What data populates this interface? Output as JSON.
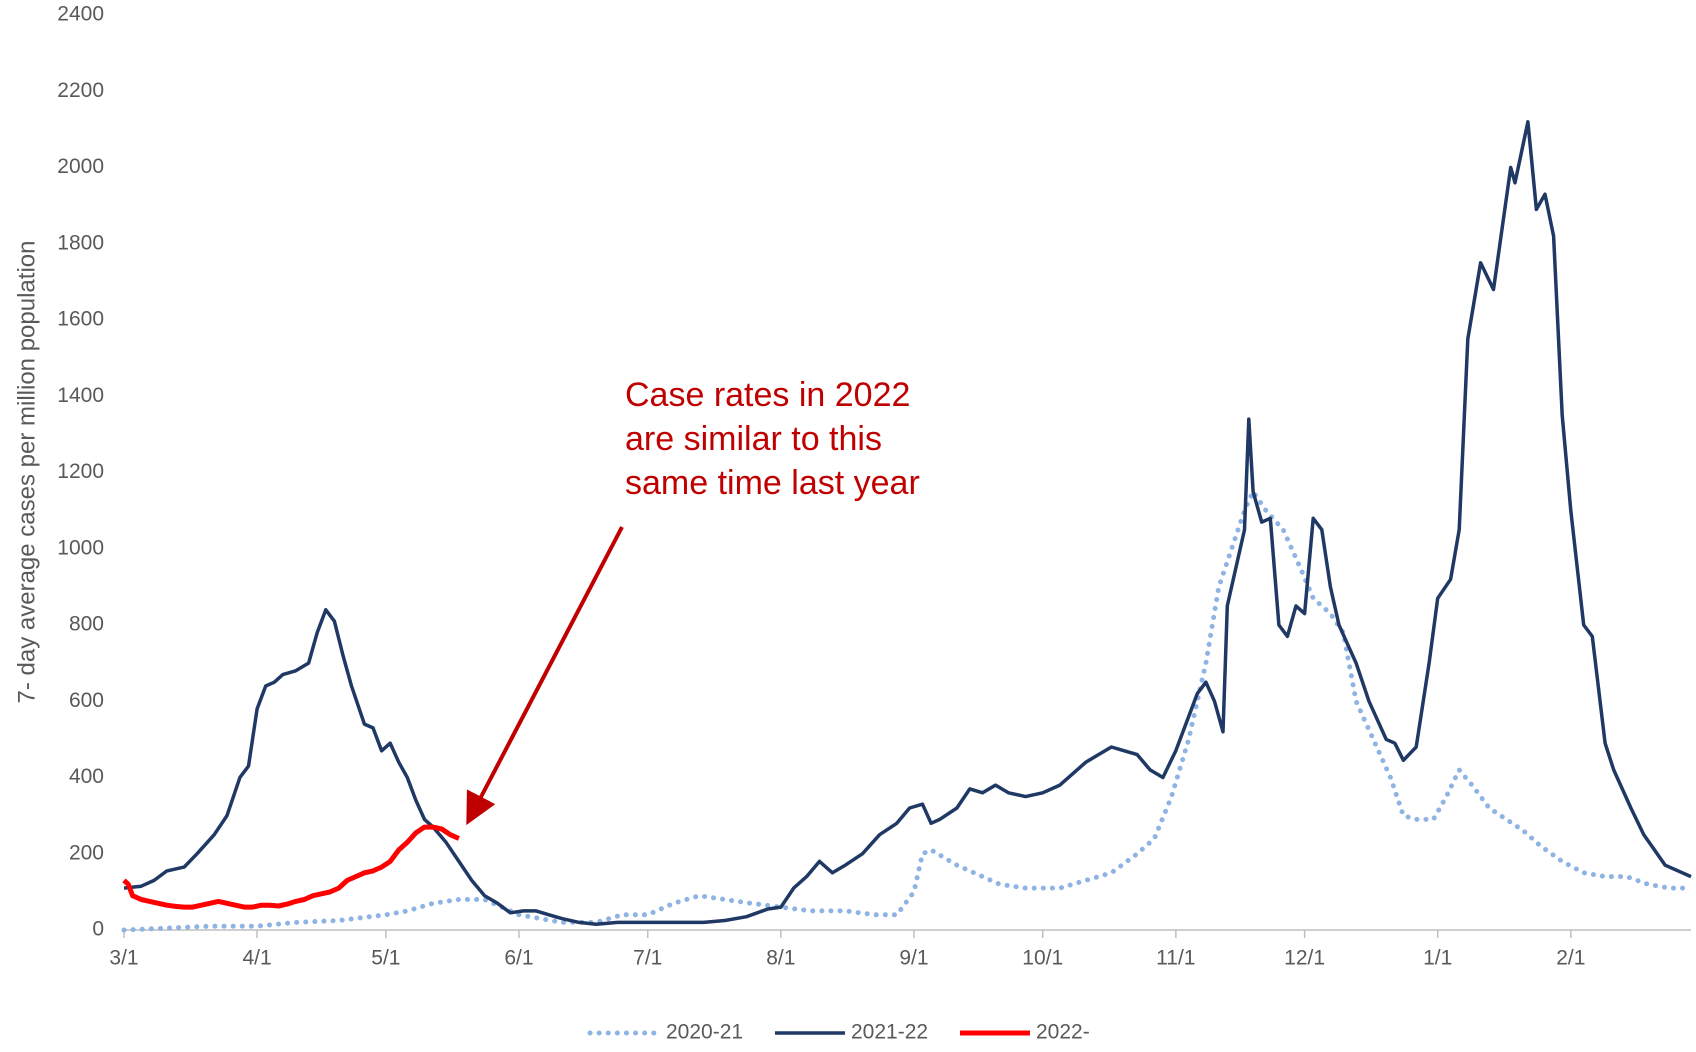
{
  "chart_data": {
    "type": "line",
    "y_label": "7- day average  cases per million population",
    "annotation": [
      "Case rates in 2022",
      "are similar to this",
      "same time last year"
    ],
    "xlim": [
      0,
      365
    ],
    "xticks": [
      {
        "value": 0,
        "label": "3/1"
      },
      {
        "value": 31,
        "label": "4/1"
      },
      {
        "value": 61,
        "label": "5/1"
      },
      {
        "value": 92,
        "label": "6/1"
      },
      {
        "value": 122,
        "label": "7/1"
      },
      {
        "value": 153,
        "label": "8/1"
      },
      {
        "value": 184,
        "label": "9/1"
      },
      {
        "value": 214,
        "label": "10/1"
      },
      {
        "value": 245,
        "label": "11/1"
      },
      {
        "value": 275,
        "label": "12/1"
      },
      {
        "value": 306,
        "label": "1/1"
      },
      {
        "value": 337,
        "label": "2/1"
      }
    ],
    "ylim": [
      0,
      2400
    ],
    "yticks": [
      0,
      200,
      400,
      600,
      800,
      1000,
      1200,
      1400,
      1600,
      1800,
      2000,
      2200,
      2400
    ],
    "grid": false,
    "legend": "bottom",
    "series": [
      {
        "name": "2020-21",
        "color": "#8fb4e3",
        "style": "dotted",
        "x": [
          0,
          10,
          20,
          31,
          40,
          50,
          61,
          66,
          72,
          78,
          84,
          88,
          92,
          97,
          102,
          110,
          116,
          122,
          128,
          134,
          140,
          146,
          153,
          160,
          168,
          175,
          180,
          184,
          186,
          188,
          191,
          194,
          198,
          204,
          210,
          218,
          224,
          230,
          236,
          240,
          244,
          248,
          252,
          255,
          258,
          261,
          263,
          266,
          270,
          274,
          277,
          281,
          284,
          287,
          291,
          295,
          298,
          301,
          305,
          308,
          311,
          314,
          318,
          322,
          326,
          330,
          335,
          340,
          345,
          350,
          355,
          360,
          365
        ],
        "values": [
          0,
          5,
          10,
          10,
          20,
          25,
          40,
          50,
          70,
          80,
          80,
          60,
          40,
          30,
          20,
          20,
          40,
          40,
          70,
          90,
          80,
          70,
          60,
          50,
          50,
          40,
          40,
          100,
          200,
          210,
          190,
          170,
          150,
          120,
          110,
          110,
          130,
          150,
          200,
          240,
          350,
          500,
          700,
          900,
          1000,
          1100,
          1150,
          1100,
          1050,
          950,
          870,
          830,
          780,
          600,
          500,
          400,
          300,
          290,
          290,
          350,
          420,
          380,
          320,
          290,
          260,
          220,
          180,
          150,
          140,
          140,
          120,
          110,
          110
        ]
      },
      {
        "name": "2021-22",
        "color": "#1f3864",
        "style": "solid",
        "x": [
          0,
          4,
          7,
          10,
          14,
          17,
          21,
          24,
          27,
          29,
          31,
          33,
          35,
          37,
          40,
          43,
          45,
          47,
          49,
          51,
          53,
          56,
          58,
          60,
          62,
          64,
          66,
          68,
          70,
          72,
          75,
          78,
          81,
          84,
          87,
          90,
          93,
          96,
          99,
          102,
          106,
          110,
          115,
          120,
          125,
          130,
          135,
          140,
          145,
          150,
          153,
          156,
          159,
          162,
          165,
          168,
          172,
          176,
          180,
          183,
          186,
          188,
          190,
          194,
          197,
          200,
          203,
          206,
          210,
          214,
          218,
          221,
          224,
          227,
          230,
          233,
          236,
          239,
          242,
          245,
          248,
          250,
          252,
          254,
          256,
          257,
          259,
          261,
          262,
          263,
          265,
          267,
          269,
          271,
          273,
          275,
          277,
          279,
          281,
          283,
          285,
          287,
          290,
          292,
          294,
          296,
          298,
          301,
          304,
          306,
          309,
          311,
          313,
          316,
          319,
          323,
          324,
          327,
          329,
          331,
          333,
          335,
          337,
          340,
          342,
          345,
          347,
          351,
          354,
          359,
          365
        ],
        "values": [
          110,
          115,
          130,
          155,
          165,
          200,
          250,
          300,
          400,
          430,
          580,
          640,
          650,
          670,
          680,
          700,
          780,
          840,
          810,
          720,
          640,
          540,
          530,
          470,
          490,
          440,
          400,
          340,
          290,
          270,
          230,
          180,
          130,
          90,
          70,
          45,
          50,
          50,
          40,
          30,
          20,
          15,
          20,
          20,
          20,
          20,
          20,
          25,
          35,
          55,
          60,
          110,
          140,
          180,
          150,
          170,
          200,
          250,
          280,
          320,
          330,
          280,
          290,
          320,
          370,
          360,
          380,
          360,
          350,
          360,
          380,
          410,
          440,
          460,
          480,
          470,
          460,
          420,
          400,
          470,
          560,
          620,
          650,
          600,
          520,
          850,
          950,
          1050,
          1340,
          1150,
          1070,
          1080,
          800,
          770,
          850,
          830,
          1080,
          1050,
          900,
          800,
          750,
          700,
          600,
          550,
          500,
          490,
          445,
          480,
          700,
          870,
          920,
          1050,
          1550,
          1750,
          1680,
          2000,
          1960,
          2120,
          1890,
          1930,
          1820,
          1350,
          1100,
          800,
          770,
          490,
          420,
          320,
          250,
          170,
          140
        ]
      },
      {
        "name": "2022-",
        "color": "#ff0000",
        "style": "solid",
        "x": [
          0,
          1,
          2,
          4,
          6,
          8,
          10,
          12,
          14,
          16,
          18,
          20,
          22,
          24,
          26,
          28,
          30,
          32,
          34,
          36,
          38,
          40,
          42,
          44,
          46,
          48,
          50,
          52,
          54,
          56,
          58,
          60,
          62,
          64,
          66,
          68,
          70,
          72,
          74,
          76,
          78
        ],
        "values": [
          130,
          120,
          90,
          80,
          75,
          70,
          65,
          62,
          60,
          60,
          65,
          70,
          75,
          70,
          65,
          60,
          60,
          65,
          65,
          63,
          68,
          75,
          80,
          90,
          95,
          100,
          110,
          130,
          140,
          150,
          155,
          165,
          180,
          210,
          230,
          255,
          270,
          270,
          265,
          250,
          240
        ]
      }
    ]
  }
}
